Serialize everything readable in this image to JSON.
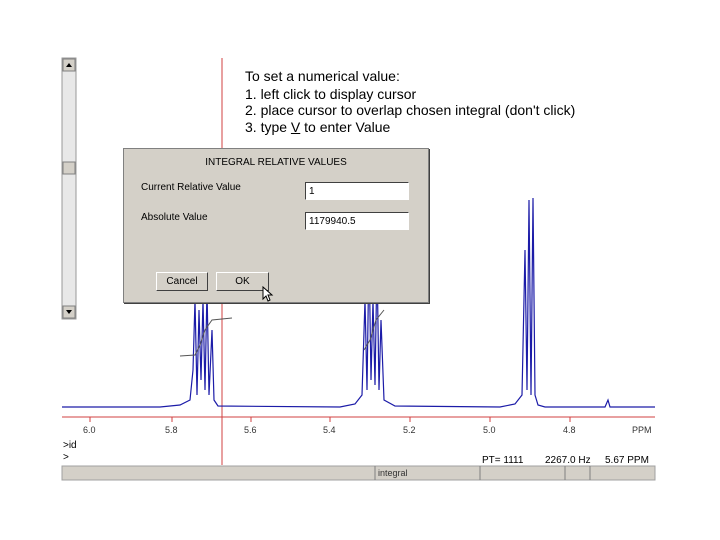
{
  "instructions": {
    "heading": "To set a numerical value:",
    "steps": [
      "1. left click to display cursor",
      "2. place cursor to overlap chosen integral (don't click)"
    ],
    "step3": {
      "before": "3. type ",
      "key": "V",
      "after": " to enter Value"
    }
  },
  "dialog": {
    "title": "INTEGRAL RELATIVE VALUES",
    "fields": [
      {
        "label": "Current Relative Value",
        "value": "1"
      },
      {
        "label": "Absolute Value",
        "value": "1179940.5"
      }
    ],
    "buttons": [
      "Cancel",
      "OK"
    ]
  },
  "axis": {
    "ticks": [
      "6.0",
      "5.8",
      "5.6",
      "5.4",
      "5.2",
      "5.0",
      "4.8"
    ],
    "unit": "PPM"
  },
  "console": {
    "lines": [
      ">id",
      ">"
    ]
  },
  "status": {
    "point": "PT= 1111",
    "frequency": "2267.0 Hz",
    "ppm": "5.67 PPM",
    "mode": "integral"
  }
}
